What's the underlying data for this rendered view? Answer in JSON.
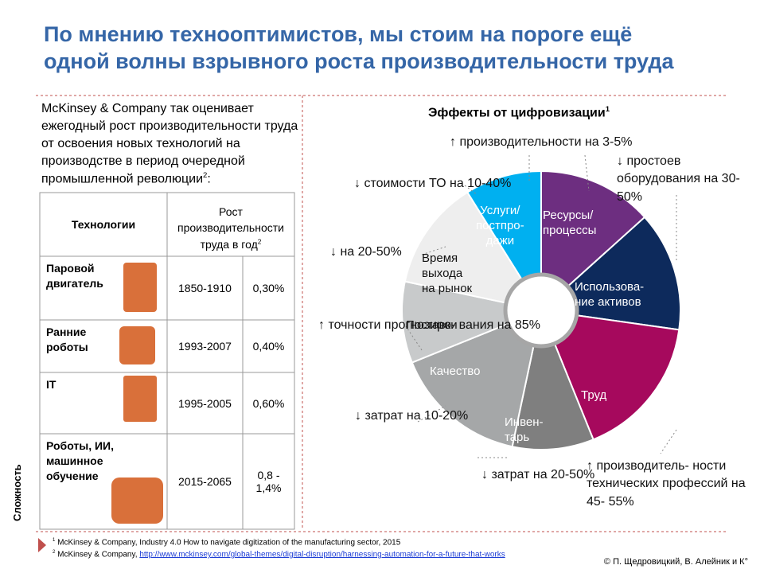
{
  "header": {
    "title_lines": [
      "По мнению технооптимистов, мы стоим на пороге ещё",
      "одной волны взрывного роста производительности труда"
    ]
  },
  "intro": {
    "text": "McKinsey & Company так оценивает ежегодный рост производительности труда от освоения новых технологий на производстве в период очередной промышленной революции",
    "sup": "2",
    "tail": ":"
  },
  "table": {
    "headers": [
      "Технологии",
      "Рост производительности труда в год",
      "2"
    ],
    "rows": [
      [
        "Паровой двигатель",
        "1850-1910",
        "0,30%"
      ],
      [
        "Ранние роботы",
        "1993-2007",
        "0,40%"
      ],
      [
        "IT",
        "1995-2005",
        "0,60%"
      ],
      [
        "Роботы, ИИ, машинное обучение",
        "2015-2065",
        "0,8 -\n1,4%"
      ]
    ],
    "axis_label": "Сложность"
  },
  "diagram": {
    "title": "Эффекты от цифровизации",
    "title_sup": "1",
    "segments": [
      {
        "label": "Ресурсы/\nпроцессы",
        "color": "#6d2e80"
      },
      {
        "label": "Использова-\nние активов",
        "color": "#0d2a5c"
      },
      {
        "label": "Труд",
        "color": "#a6095d"
      },
      {
        "label": "Инвен-\nтарь",
        "color": "#7f7f7f"
      },
      {
        "label": "Качество",
        "color": "#a5a7a8"
      },
      {
        "label": "Поставки",
        "color": "#c8cacb"
      },
      {
        "label": "Время\nвыхода\nна рынок",
        "color": "#eeeeee"
      },
      {
        "label": "Услуги/\nпостпро-\nдажи",
        "color": "#00b0f0"
      }
    ],
    "callouts": [
      "↑ производительности на 3-5%",
      "↓ простоев\nоборудования\nна 30-50%",
      "↑ производитель-\nности технических\nпрофессий на 45-\n55%",
      "↓ затрат\nна 20-50%",
      "↓ затрат на\n10-20%",
      "↑ точности\nпрогнозиро-\nвания на 85%",
      "↓ на 20-50%",
      "↓ стоимости ТО на\n10-40%"
    ]
  },
  "footer": {
    "notes": [
      {
        "sup": "1",
        "text": "McKinsey & Company, Industry 4.0 How to navigate digitization of the manufacturing sector, 2015"
      },
      {
        "sup": "2",
        "text": "McKinsey & Company, ",
        "link": "http://www.mckinsey.com/global-themes/digital-disruption/harnessing-automation-for-a-future-that-works"
      }
    ],
    "copyright": "© П. Щедровицкий, В. Алейник и К°"
  }
}
